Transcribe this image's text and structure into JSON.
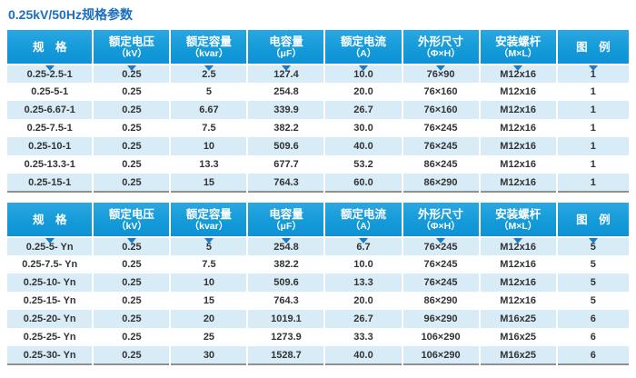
{
  "page_title": "0.25kV/50Hz规格参数",
  "colors": {
    "header_blue": "#149bd9",
    "header_blue_top": "#2ba7e3",
    "row_alt": "#d8ecf8",
    "title_blue": "#1a6fc0",
    "notch_blue": "#1d7ac6",
    "rule_gray": "#909090"
  },
  "tables": [
    {
      "name": "spec-table-1",
      "columns": [
        {
          "title": "规　格",
          "sub": ""
        },
        {
          "title": "额定电压",
          "sub": "（kV）"
        },
        {
          "title": "额定容量",
          "sub": "（kvar）"
        },
        {
          "title": "电容量",
          "sub": "（μF）"
        },
        {
          "title": "额定电流",
          "sub": "（A）"
        },
        {
          "title": "外形尺寸",
          "sub": "（Φ×H）"
        },
        {
          "title": "安装螺杆",
          "sub": "（M×L）"
        },
        {
          "title": "图　例",
          "sub": ""
        }
      ],
      "rows": [
        [
          "0.25-2.5-1",
          "0.25",
          "2.5",
          "127.4",
          "10.0",
          "76×90",
          "M12x16",
          "1"
        ],
        [
          "0.25-5-1",
          "0.25",
          "5",
          "254.8",
          "20.0",
          "76×160",
          "M12x16",
          "1"
        ],
        [
          "0.25-6.67-1",
          "0.25",
          "6.67",
          "339.9",
          "26.7",
          "76×160",
          "M12x16",
          "1"
        ],
        [
          "0.25-7.5-1",
          "0.25",
          "7.5",
          "382.2",
          "30.0",
          "76×245",
          "M12x16",
          "1"
        ],
        [
          "0.25-10-1",
          "0.25",
          "10",
          "509.6",
          "40.0",
          "76×245",
          "M12x16",
          "1"
        ],
        [
          "0.25-13.3-1",
          "0.25",
          "13.3",
          "677.7",
          "53.2",
          "86×245",
          "M12x16",
          "1"
        ],
        [
          "0.25-15-1",
          "0.25",
          "15",
          "764.3",
          "60.0",
          "86×290",
          "M12x16",
          "1"
        ]
      ]
    },
    {
      "name": "spec-table-2",
      "columns": [
        {
          "title": "规　格",
          "sub": ""
        },
        {
          "title": "额定电压",
          "sub": "（kV）"
        },
        {
          "title": "额定容量",
          "sub": "（kvar）"
        },
        {
          "title": "电容量",
          "sub": "（μF）"
        },
        {
          "title": "额定电流",
          "sub": "（A）"
        },
        {
          "title": "外形尺寸",
          "sub": "（Φ×H）"
        },
        {
          "title": "安装螺杆",
          "sub": "（M×L）"
        },
        {
          "title": "图　例",
          "sub": ""
        }
      ],
      "rows": [
        [
          "0.25-5- Yn",
          "0.25",
          "5",
          "254.8",
          "6.7",
          "76×245",
          "M12x16",
          "5"
        ],
        [
          "0.25-7.5- Yn",
          "0.25",
          "7.5",
          "382.2",
          "10.0",
          "76×245",
          "M12x16",
          "5"
        ],
        [
          "0.25-10- Yn",
          "0.25",
          "10",
          "509.6",
          "13.3",
          "76×245",
          "M12x16",
          "5"
        ],
        [
          "0.25-15- Yn",
          "0.25",
          "15",
          "764.3",
          "20.0",
          "86×290",
          "M12x16",
          "5"
        ],
        [
          "0.25-20- Yn",
          "0.25",
          "20",
          "1019.1",
          "26.7",
          "96×290",
          "M16x25",
          "6"
        ],
        [
          "0.25-25- Yn",
          "0.25",
          "25",
          "1273.9",
          "33.3",
          "106×290",
          "M16x25",
          "6"
        ],
        [
          "0.25-30- Yn",
          "0.25",
          "30",
          "1528.7",
          "40.0",
          "106×290",
          "M16x25",
          "6"
        ]
      ]
    }
  ]
}
